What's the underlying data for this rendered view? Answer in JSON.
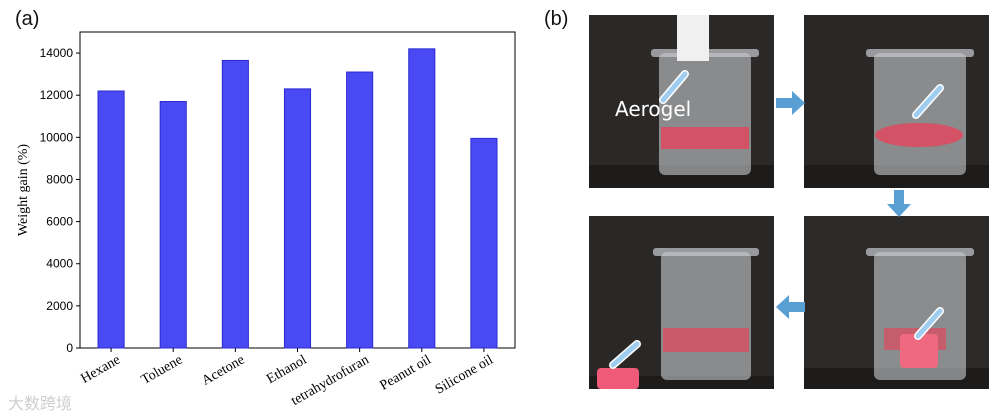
{
  "panels": {
    "a": "(a)",
    "b": "(b)"
  },
  "chart_data": {
    "type": "bar",
    "title": "",
    "xlabel": "",
    "ylabel": "Weight gain (%)",
    "ylim": [
      0,
      15000
    ],
    "yticks": [
      0,
      2000,
      4000,
      6000,
      8000,
      10000,
      12000,
      14000
    ],
    "categories": [
      "Hexane",
      "Toluene",
      "Acetone",
      "Ethanol",
      "tetrahydrofuran",
      "Peanut oil",
      "Silicone oil"
    ],
    "values": [
      12200,
      11700,
      13650,
      12300,
      13100,
      14200,
      9950
    ],
    "bar_color": "#4a4af5",
    "grid": false,
    "legend": "none"
  },
  "photos": {
    "aerogel_label": "Aerogel",
    "arrow_color": "#5a9fd4",
    "liquid_color": "#e0485e"
  },
  "watermark": "大数跨境"
}
